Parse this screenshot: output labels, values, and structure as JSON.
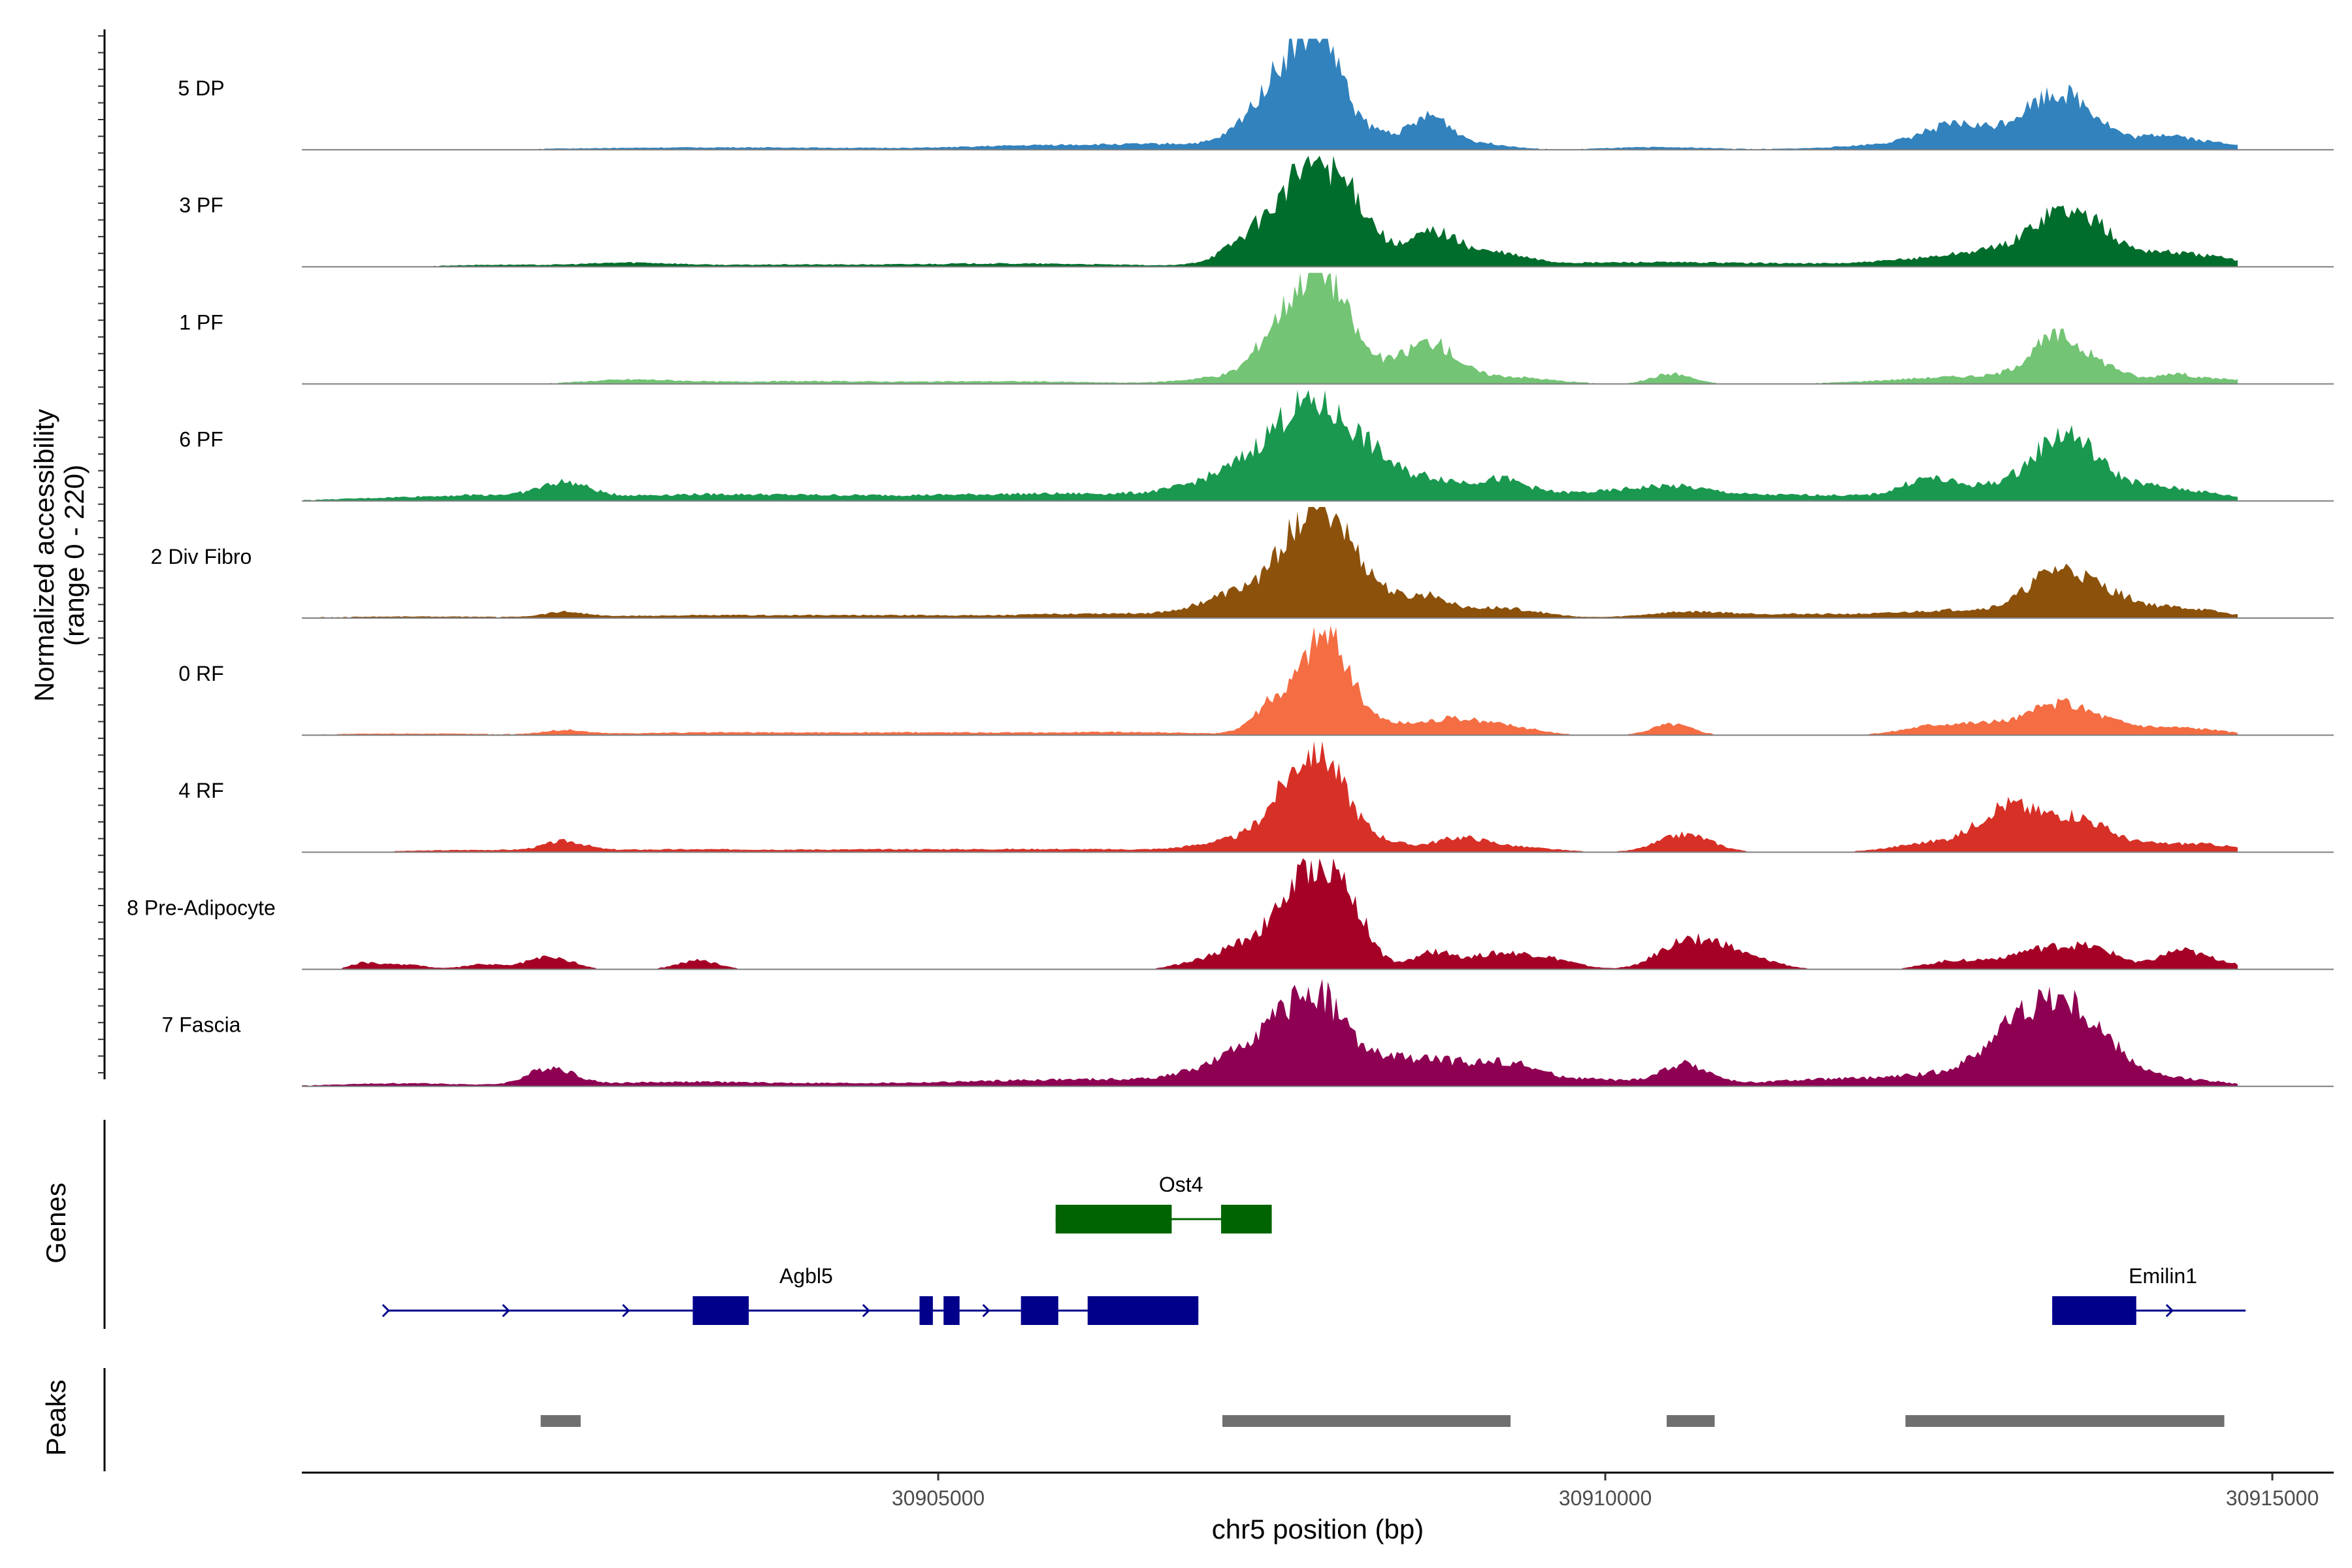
{
  "chart_data": {
    "type": "area",
    "title": "",
    "ylabel_line1": "Normalized accessibility",
    "ylabel_line2": "(range 0 - 220)",
    "ylim": [
      0,
      220
    ],
    "xlabel": "chr5 position (bp)",
    "xlim": [
      30900230,
      30915460
    ],
    "x_ticks": [
      30905000,
      30910000,
      30915000
    ],
    "x_tick_labels": [
      "30905000",
      "30910000",
      "30915000"
    ],
    "data_start": 30900230,
    "data_end": 30914740,
    "tracks": [
      {
        "name": "5 DP",
        "color": "#3182bd",
        "peaks": [
          [
            30903100,
            4,
            900
          ],
          [
            30904300,
            2,
            700
          ],
          [
            30905600,
            4,
            500
          ],
          [
            30906300,
            6,
            700
          ],
          [
            30907100,
            8,
            600
          ],
          [
            30907400,
            35,
            180
          ],
          [
            30907700,
            160,
            220
          ],
          [
            30907900,
            110,
            150
          ],
          [
            30908300,
            30,
            200
          ],
          [
            30908700,
            55,
            140
          ],
          [
            30909000,
            14,
            250
          ],
          [
            30910400,
            5,
            400
          ],
          [
            30912600,
            25,
            200
          ],
          [
            30913000,
            30,
            700
          ],
          [
            30913350,
            72,
            230
          ],
          [
            30913600,
            28,
            200
          ],
          [
            30914200,
            18,
            150
          ],
          [
            30914550,
            12,
            300
          ]
        ]
      },
      {
        "name": "3 PF",
        "color": "#006d2c",
        "peaks": [
          [
            30901700,
            4,
            400
          ],
          [
            30902700,
            8,
            350
          ],
          [
            30903800,
            4,
            500
          ],
          [
            30905100,
            5,
            600
          ],
          [
            30906100,
            4,
            600
          ],
          [
            30907400,
            60,
            230
          ],
          [
            30907850,
            200,
            230
          ],
          [
            30908200,
            50,
            150
          ],
          [
            30908700,
            65,
            180
          ],
          [
            30909150,
            25,
            250
          ],
          [
            30910100,
            8,
            600
          ],
          [
            30911300,
            6,
            600
          ],
          [
            30912500,
            15,
            400
          ],
          [
            30913000,
            25,
            300
          ],
          [
            30913400,
            95,
            200
          ],
          [
            30913700,
            40,
            150
          ],
          [
            30914100,
            30,
            300
          ],
          [
            30914600,
            12,
            200
          ]
        ]
      },
      {
        "name": "1 PF",
        "color": "#74c476",
        "peaks": [
          [
            30902700,
            8,
            350
          ],
          [
            30903900,
            5,
            600
          ],
          [
            30905500,
            5,
            700
          ],
          [
            30907200,
            15,
            300
          ],
          [
            30907500,
            60,
            150
          ],
          [
            30907850,
            220,
            200
          ],
          [
            30908300,
            30,
            300
          ],
          [
            30908700,
            65,
            180
          ],
          [
            30909200,
            15,
            350
          ],
          [
            30910500,
            20,
            150
          ],
          [
            30912800,
            15,
            600
          ],
          [
            30913400,
            85,
            200
          ],
          [
            30913800,
            20,
            150
          ],
          [
            30914250,
            18,
            130
          ],
          [
            30914600,
            10,
            200
          ]
        ]
      },
      {
        "name": "6 PF",
        "color": "#1a9850",
        "peaks": [
          [
            30901000,
            6,
            500
          ],
          [
            30901700,
            8,
            400
          ],
          [
            30902200,
            28,
            180
          ],
          [
            30903000,
            10,
            700
          ],
          [
            30904200,
            8,
            800
          ],
          [
            30905500,
            8,
            700
          ],
          [
            30906500,
            10,
            700
          ],
          [
            30907300,
            50,
            350
          ],
          [
            30907800,
            170,
            280
          ],
          [
            30908250,
            60,
            200
          ],
          [
            30908700,
            40,
            200
          ],
          [
            30909200,
            35,
            200
          ],
          [
            30909800,
            15,
            500
          ],
          [
            30910500,
            20,
            300
          ],
          [
            30911500,
            12,
            700
          ],
          [
            30912400,
            30,
            180
          ],
          [
            30913000,
            30,
            400
          ],
          [
            30913450,
            110,
            220
          ],
          [
            30913900,
            25,
            300
          ],
          [
            30914400,
            15,
            300
          ]
        ]
      },
      {
        "name": "2 Div Fibro",
        "color": "#8c510a",
        "peaks": [
          [
            30901000,
            3,
            600
          ],
          [
            30902200,
            10,
            150
          ],
          [
            30903200,
            5,
            800
          ],
          [
            30904900,
            5,
            800
          ],
          [
            30906300,
            8,
            500
          ],
          [
            30907300,
            50,
            300
          ],
          [
            30907850,
            220,
            230
          ],
          [
            30908300,
            40,
            200
          ],
          [
            30908700,
            35,
            150
          ],
          [
            30909200,
            20,
            300
          ],
          [
            30910600,
            10,
            300
          ],
          [
            30911500,
            8,
            600
          ],
          [
            30912700,
            15,
            400
          ],
          [
            30913400,
            90,
            230
          ],
          [
            30913800,
            30,
            200
          ],
          [
            30914300,
            20,
            300
          ]
        ]
      },
      {
        "name": "0 RF",
        "color": "#f46d43",
        "peaks": [
          [
            30901000,
            3,
            600
          ],
          [
            30902200,
            8,
            150
          ],
          [
            30903300,
            5,
            800
          ],
          [
            30905100,
            5,
            800
          ],
          [
            30906500,
            5,
            500
          ],
          [
            30907500,
            55,
            150
          ],
          [
            30907900,
            200,
            180
          ],
          [
            30908350,
            20,
            200
          ],
          [
            30908800,
            25,
            200
          ],
          [
            30909200,
            20,
            250
          ],
          [
            30910500,
            22,
            150
          ],
          [
            30912500,
            20,
            250
          ],
          [
            30912900,
            15,
            200
          ],
          [
            30913400,
            60,
            230
          ],
          [
            30913800,
            15,
            200
          ],
          [
            30914300,
            15,
            300
          ]
        ]
      },
      {
        "name": "4 RF",
        "color": "#d73027",
        "peaks": [
          [
            30901500,
            4,
            500
          ],
          [
            30902200,
            18,
            150
          ],
          [
            30903000,
            5,
            700
          ],
          [
            30904700,
            5,
            800
          ],
          [
            30906200,
            5,
            700
          ],
          [
            30907300,
            25,
            300
          ],
          [
            30907550,
            40,
            150
          ],
          [
            30907850,
            190,
            200
          ],
          [
            30908300,
            20,
            200
          ],
          [
            30908900,
            25,
            200
          ],
          [
            30909300,
            10,
            300
          ],
          [
            30910600,
            35,
            200
          ],
          [
            30912500,
            20,
            300
          ],
          [
            30913000,
            80,
            200
          ],
          [
            30913500,
            70,
            250
          ],
          [
            30914200,
            15,
            300
          ],
          [
            30914600,
            8,
            200
          ]
        ]
      },
      {
        "name": "8 Pre-Adipocyte",
        "color": "#a50026",
        "peaks": [
          [
            30900700,
            12,
            100
          ],
          [
            30901000,
            10,
            150
          ],
          [
            30901600,
            10,
            150
          ],
          [
            30902000,
            18,
            120
          ],
          [
            30902200,
            15,
            120
          ],
          [
            30903200,
            18,
            150
          ],
          [
            30906900,
            10,
            150
          ],
          [
            30907300,
            50,
            200
          ],
          [
            30907600,
            70,
            150
          ],
          [
            30907850,
            170,
            170
          ],
          [
            30908100,
            90,
            150
          ],
          [
            30908700,
            30,
            150
          ],
          [
            30909200,
            30,
            250
          ],
          [
            30909600,
            15,
            200
          ],
          [
            30910600,
            55,
            200
          ],
          [
            30910900,
            30,
            150
          ],
          [
            30911200,
            15,
            150
          ],
          [
            30912600,
            15,
            200
          ],
          [
            30913300,
            40,
            300
          ],
          [
            30913700,
            25,
            200
          ],
          [
            30914300,
            35,
            150
          ],
          [
            30914600,
            15,
            150
          ]
        ]
      },
      {
        "name": "7 Fascia",
        "color": "#8e0152",
        "peaks": [
          [
            30901000,
            6,
            500
          ],
          [
            30902100,
            35,
            170
          ],
          [
            30903000,
            8,
            600
          ],
          [
            30904300,
            5,
            700
          ],
          [
            30905600,
            8,
            600
          ],
          [
            30906500,
            10,
            600
          ],
          [
            30907200,
            40,
            300
          ],
          [
            30907500,
            70,
            200
          ],
          [
            30907850,
            160,
            200
          ],
          [
            30908300,
            40,
            250
          ],
          [
            30908800,
            45,
            300
          ],
          [
            30909300,
            30,
            200
          ],
          [
            30909800,
            15,
            400
          ],
          [
            30910600,
            40,
            180
          ],
          [
            30911800,
            15,
            600
          ],
          [
            30912600,
            20,
            300
          ],
          [
            30913000,
            70,
            200
          ],
          [
            30913400,
            160,
            250
          ],
          [
            30913800,
            40,
            200
          ],
          [
            30914300,
            15,
            300
          ]
        ]
      }
    ],
    "genes": [
      {
        "name": "Ost4",
        "color": "#006400",
        "strand": "-",
        "start": 30905880,
        "end": 30907500,
        "exons": [
          [
            30905880,
            30906750
          ],
          [
            30907120,
            30907500
          ]
        ]
      },
      {
        "name": "Agbl5",
        "color": "#00008b",
        "strand": "+",
        "start": 30900880,
        "end": 30906950,
        "exons": [
          [
            30903160,
            30903580
          ],
          [
            30904860,
            30904960
          ],
          [
            30905040,
            30905160
          ],
          [
            30905620,
            30905900
          ],
          [
            30906120,
            30906950
          ]
        ]
      },
      {
        "name": "Emilin1",
        "color": "#00008b",
        "strand": "+",
        "start": 30913350,
        "end": 30914800,
        "exons": [
          [
            30913350,
            30913980
          ]
        ]
      }
    ],
    "peak_regions": [
      [
        30902020,
        30902320
      ],
      [
        30907130,
        30909290
      ],
      [
        30910460,
        30910820
      ],
      [
        30912250,
        30914640
      ]
    ],
    "panel_labels": {
      "genes": "Genes",
      "peaks": "Peaks"
    }
  }
}
